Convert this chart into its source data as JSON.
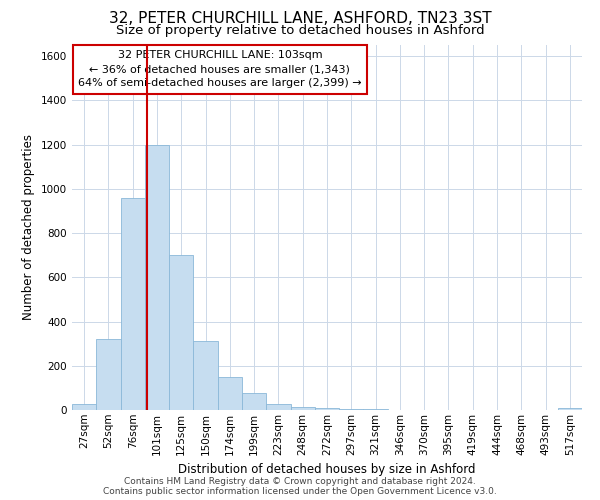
{
  "title": "32, PETER CHURCHILL LANE, ASHFORD, TN23 3ST",
  "subtitle": "Size of property relative to detached houses in Ashford",
  "xlabel": "Distribution of detached houses by size in Ashford",
  "ylabel": "Number of detached properties",
  "bar_color": "#c6ddf0",
  "bar_edge_color": "#8ab8d8",
  "background_color": "#ffffff",
  "grid_color": "#ccd8e8",
  "annotation_line_color": "#cc0000",
  "annotation_box_edge_color": "#cc0000",
  "annotation_text": "32 PETER CHURCHILL LANE: 103sqm\n← 36% of detached houses are smaller (1,343)\n64% of semi-detached houses are larger (2,399) →",
  "property_value": 103,
  "categories": [
    "27sqm",
    "52sqm",
    "76sqm",
    "101sqm",
    "125sqm",
    "150sqm",
    "174sqm",
    "199sqm",
    "223sqm",
    "248sqm",
    "272sqm",
    "297sqm",
    "321sqm",
    "346sqm",
    "370sqm",
    "395sqm",
    "419sqm",
    "444sqm",
    "468sqm",
    "493sqm",
    "517sqm"
  ],
  "bin_starts": [
    27,
    52,
    76,
    101,
    125,
    150,
    174,
    199,
    223,
    248,
    272,
    297,
    321,
    346,
    370,
    395,
    419,
    444,
    468,
    493,
    517
  ],
  "values": [
    25,
    320,
    960,
    1200,
    700,
    310,
    150,
    75,
    25,
    15,
    10,
    5,
    3,
    2,
    2,
    2,
    1,
    1,
    1,
    1,
    10
  ],
  "ylim": [
    0,
    1650
  ],
  "yticks": [
    0,
    200,
    400,
    600,
    800,
    1000,
    1200,
    1400,
    1600
  ],
  "footer_text": "Contains HM Land Registry data © Crown copyright and database right 2024.\nContains public sector information licensed under the Open Government Licence v3.0.",
  "title_fontsize": 11,
  "subtitle_fontsize": 9.5,
  "axis_label_fontsize": 8.5,
  "tick_fontsize": 7.5,
  "annotation_fontsize": 8,
  "footer_fontsize": 6.5
}
